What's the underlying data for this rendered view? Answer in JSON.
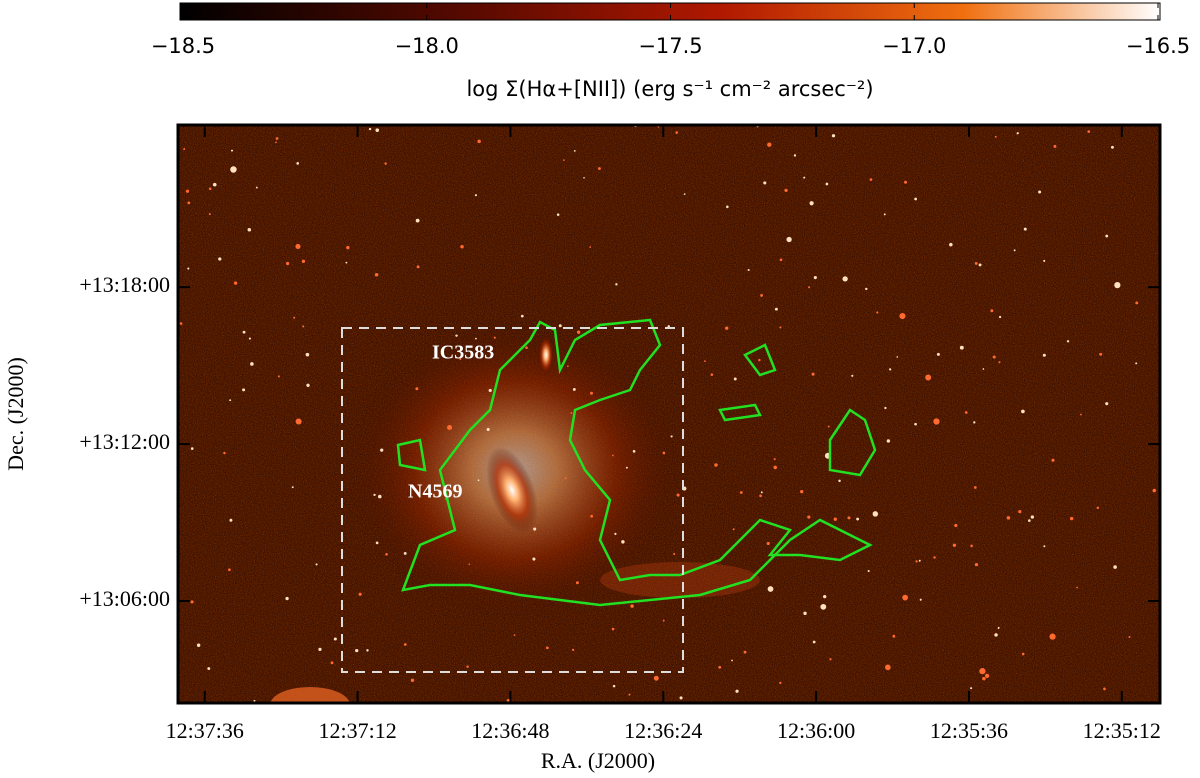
{
  "chart_data": {
    "type": "image",
    "xlabel": "R.A. (J2000)",
    "ylabel": "Dec. (J2000)",
    "xlim": [
      2260.2,
      2106
    ],
    "xticks": [
      {
        "value": 2256,
        "label": "12:37:36"
      },
      {
        "value": 2232,
        "label": "12:37:12"
      },
      {
        "value": 2208,
        "label": "12:36:48"
      },
      {
        "value": 2184,
        "label": "12:36:24"
      },
      {
        "value": 2160,
        "label": "12:36:00"
      },
      {
        "value": 2136,
        "label": "12:35:36"
      },
      {
        "value": 2112,
        "label": "12:35:12"
      }
    ],
    "ylim": [
      2.1,
      24.2
    ],
    "yticks": [
      {
        "value": 18,
        "label": "+13:18:00"
      },
      {
        "value": 12,
        "label": "+13:12:00"
      },
      {
        "value": 6,
        "label": "+13:06:00"
      }
    ],
    "colorbar": {
      "label": "log Σ(Hα+[NII]) (erg s⁻¹ cm⁻² arcsec⁻²)",
      "lim": [
        -18.5,
        -16.5
      ],
      "ticks": [
        {
          "value": -18.5,
          "label": "−18.5"
        },
        {
          "value": -18.0,
          "label": "−18.0"
        },
        {
          "value": -17.5,
          "label": "−17.5"
        },
        {
          "value": -17.0,
          "label": "−17.0"
        },
        {
          "value": -16.5,
          "label": "−16.5"
        }
      ]
    },
    "annotations": [
      "IC3583",
      "N4569"
    ]
  }
}
